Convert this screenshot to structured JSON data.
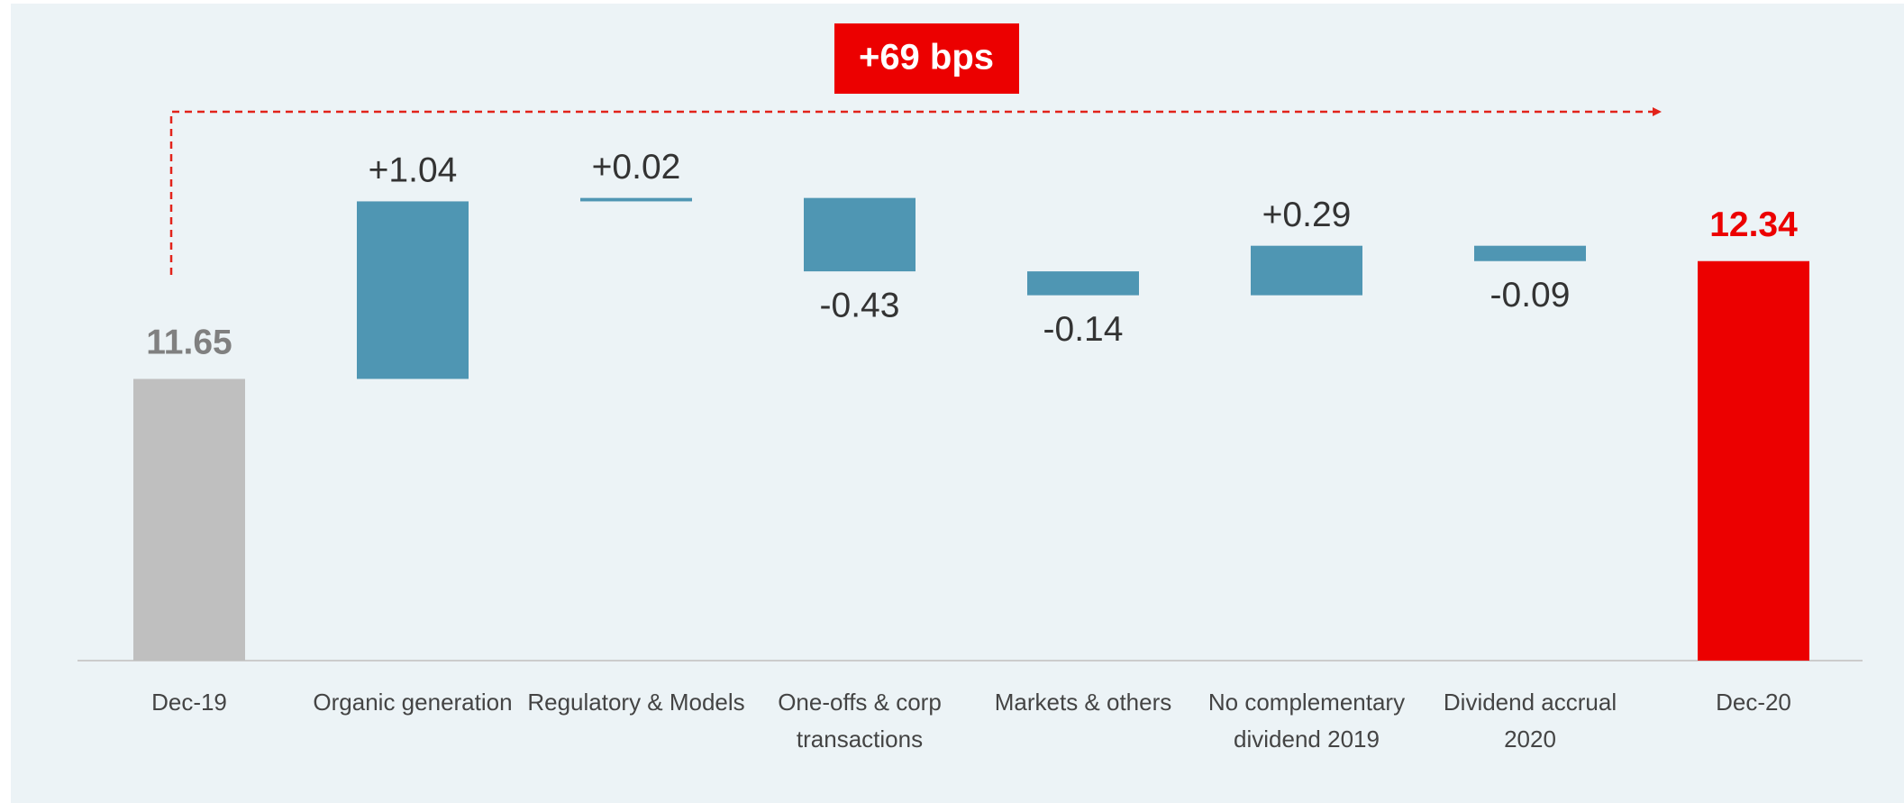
{
  "chart_data": {
    "type": "waterfall",
    "annotation": "+69 bps",
    "categories": [
      "Dec-19",
      "Organic generation",
      "Regulatory & Models",
      "One-offs & corp transactions",
      "Markets & others",
      "No complementary dividend 2019",
      "Dividend accrual 2020",
      "Dec-20"
    ],
    "values": [
      11.65,
      1.04,
      0.02,
      -0.43,
      -0.14,
      0.29,
      -0.09,
      12.34
    ],
    "value_labels": [
      "11.65",
      "+1.04",
      "+0.02",
      "-0.43",
      "-0.14",
      "+0.29",
      "-0.09",
      "12.34"
    ],
    "colors": [
      "#bfbfbf",
      "#4f96b3",
      "#4f96b3",
      "#4f96b3",
      "#4f96b3",
      "#4f96b3",
      "#4f96b3",
      "#ec0000"
    ],
    "ylim": [
      10,
      13.5
    ]
  }
}
